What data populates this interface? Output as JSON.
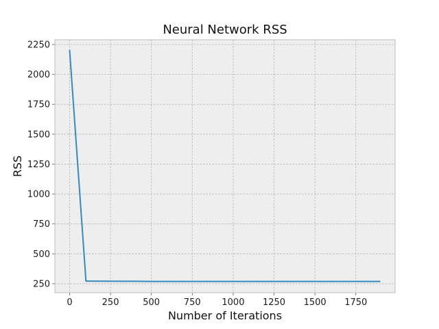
{
  "chart_data": {
    "type": "line",
    "title": "Neural Network RSS",
    "xlabel": "Number of Iterations",
    "ylabel": "RSS",
    "xlim": [
      -90,
      1990
    ],
    "ylim": [
      175,
      2290
    ],
    "xticks": [
      0,
      250,
      500,
      750,
      1000,
      1250,
      1500,
      1750
    ],
    "yticks": [
      250,
      500,
      750,
      1000,
      1250,
      1500,
      1750,
      2000,
      2250
    ],
    "grid": true,
    "series": [
      {
        "color": "#348abd",
        "x": [
          0,
          100,
          200,
          300,
          400,
          500,
          600,
          700,
          800,
          900,
          1000,
          1100,
          1200,
          1300,
          1400,
          1500,
          1600,
          1700,
          1800,
          1900
        ],
        "y": [
          2205,
          272,
          271,
          270,
          270,
          269,
          269,
          269,
          269,
          269,
          269,
          269,
          269,
          269,
          269,
          269,
          269,
          269,
          269,
          269
        ]
      }
    ],
    "colors": {
      "plot_bg": "#eeeeee",
      "frame": "#bcbcbc",
      "line": "#348abd"
    }
  }
}
